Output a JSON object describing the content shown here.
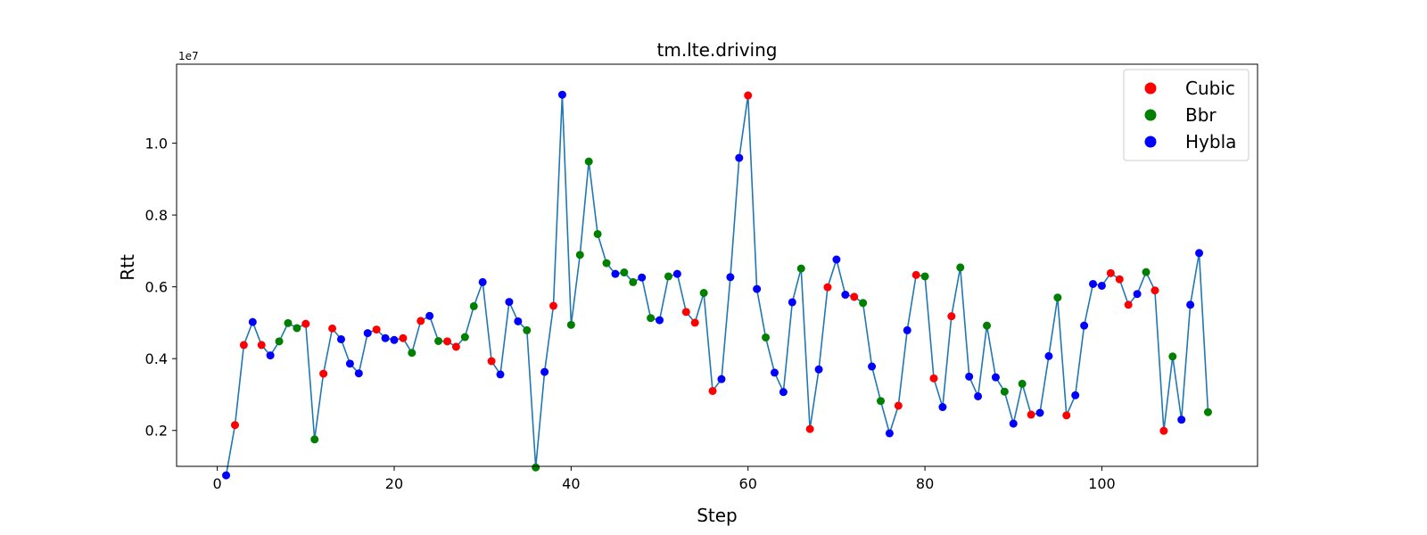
{
  "chart_data": {
    "type": "line",
    "title": "tm.lte.driving",
    "xlabel": "Step",
    "ylabel": "Rtt",
    "y_offset_label": "1e7",
    "xlim": [
      -4.6,
      117.6
    ],
    "ylim": [
      1000000,
      12200000
    ],
    "x_ticks": [
      0,
      20,
      40,
      60,
      80,
      100
    ],
    "y_ticks": [
      2000000,
      4000000,
      6000000,
      8000000,
      10000000
    ],
    "y_tick_labels": [
      "0.2",
      "0.4",
      "0.6",
      "0.8",
      "1.0"
    ],
    "x_tick_labels": [
      "0",
      "20",
      "40",
      "60",
      "80",
      "100"
    ],
    "line_color": "#1f77b4",
    "grid": false,
    "legend_position": "top-right",
    "legend": [
      {
        "name": "Cubic",
        "color": "#ff0000"
      },
      {
        "name": "Bbr",
        "color": "#008000"
      },
      {
        "name": "Hybla",
        "color": "#0000ff"
      }
    ],
    "series": [
      {
        "name": "Rtt",
        "x": [
          1,
          2,
          3,
          4,
          5,
          6,
          7,
          8,
          9,
          10,
          11,
          12,
          13,
          14,
          15,
          16,
          17,
          18,
          19,
          20,
          21,
          22,
          23,
          24,
          25,
          26,
          27,
          28,
          29,
          30,
          31,
          32,
          33,
          34,
          35,
          36,
          37,
          38,
          39,
          40,
          41,
          42,
          43,
          44,
          45,
          46,
          47,
          48,
          49,
          50,
          51,
          52,
          53,
          54,
          55,
          56,
          57,
          58,
          59,
          60,
          61,
          62,
          63,
          64,
          65,
          66,
          67,
          68,
          69,
          70,
          71,
          72,
          73,
          74,
          75,
          76,
          77,
          78,
          79,
          80,
          81,
          82,
          83,
          84,
          85,
          86,
          87,
          88,
          89,
          90,
          91,
          92,
          93,
          94,
          95,
          96,
          97,
          98,
          99,
          100,
          101,
          102,
          103,
          104,
          105,
          106,
          107,
          108,
          109,
          110,
          111,
          112
        ],
        "values": [
          750000,
          2150000,
          4380000,
          5020000,
          4380000,
          4090000,
          4480000,
          4990000,
          4850000,
          4970000,
          1750000,
          3580000,
          4840000,
          4540000,
          3860000,
          3590000,
          4710000,
          4810000,
          4570000,
          4520000,
          4570000,
          4160000,
          5050000,
          5190000,
          4490000,
          4480000,
          4330000,
          4600000,
          5460000,
          6130000,
          3930000,
          3560000,
          5580000,
          5040000,
          4790000,
          970000,
          3630000,
          5470000,
          11350000,
          4940000,
          6890000,
          9490000,
          7470000,
          6660000,
          6360000,
          6400000,
          6130000,
          6260000,
          5130000,
          5070000,
          6290000,
          6360000,
          5300000,
          5000000,
          5830000,
          3100000,
          3430000,
          6270000,
          9590000,
          11330000,
          5940000,
          4590000,
          3610000,
          3070000,
          5570000,
          6510000,
          2040000,
          3700000,
          5990000,
          6760000,
          5780000,
          5720000,
          5550000,
          3780000,
          2820000,
          1920000,
          2690000,
          4790000,
          6330000,
          6290000,
          3450000,
          2650000,
          5180000,
          6540000,
          3500000,
          2950000,
          4920000,
          3480000,
          3080000,
          2190000,
          3300000,
          2440000,
          2490000,
          4070000,
          5700000,
          2420000,
          2980000,
          4920000,
          6080000,
          6030000,
          6380000,
          6210000,
          5500000,
          5800000,
          6410000,
          5900000,
          1990000,
          4060000,
          2300000,
          5500000,
          6940000,
          2510000
        ],
        "point_groups": [
          "Hybla",
          "Cubic",
          "Cubic",
          "Hybla",
          "Cubic",
          "Hybla",
          "Bbr",
          "Bbr",
          "Bbr",
          "Cubic",
          "Bbr",
          "Cubic",
          "Cubic",
          "Hybla",
          "Hybla",
          "Hybla",
          "Hybla",
          "Cubic",
          "Hybla",
          "Hybla",
          "Cubic",
          "Bbr",
          "Cubic",
          "Hybla",
          "Bbr",
          "Cubic",
          "Cubic",
          "Bbr",
          "Bbr",
          "Hybla",
          "Cubic",
          "Hybla",
          "Hybla",
          "Hybla",
          "Bbr",
          "Bbr",
          "Hybla",
          "Cubic",
          "Hybla",
          "Bbr",
          "Bbr",
          "Bbr",
          "Bbr",
          "Bbr",
          "Hybla",
          "Bbr",
          "Bbr",
          "Hybla",
          "Bbr",
          "Hybla",
          "Bbr",
          "Hybla",
          "Cubic",
          "Cubic",
          "Bbr",
          "Cubic",
          "Hybla",
          "Hybla",
          "Hybla",
          "Cubic",
          "Hybla",
          "Bbr",
          "Hybla",
          "Hybla",
          "Hybla",
          "Bbr",
          "Cubic",
          "Hybla",
          "Cubic",
          "Hybla",
          "Hybla",
          "Cubic",
          "Bbr",
          "Hybla",
          "Bbr",
          "Hybla",
          "Cubic",
          "Hybla",
          "Cubic",
          "Bbr",
          "Cubic",
          "Hybla",
          "Cubic",
          "Bbr",
          "Hybla",
          "Hybla",
          "Bbr",
          "Hybla",
          "Bbr",
          "Hybla",
          "Bbr",
          "Cubic",
          "Hybla",
          "Hybla",
          "Bbr",
          "Cubic",
          "Hybla",
          "Hybla",
          "Hybla",
          "Hybla",
          "Cubic",
          "Cubic",
          "Cubic",
          "Hybla",
          "Bbr",
          "Cubic",
          "Cubic",
          "Bbr",
          "Hybla",
          "Hybla",
          "Hybla",
          "Bbr"
        ]
      }
    ]
  }
}
